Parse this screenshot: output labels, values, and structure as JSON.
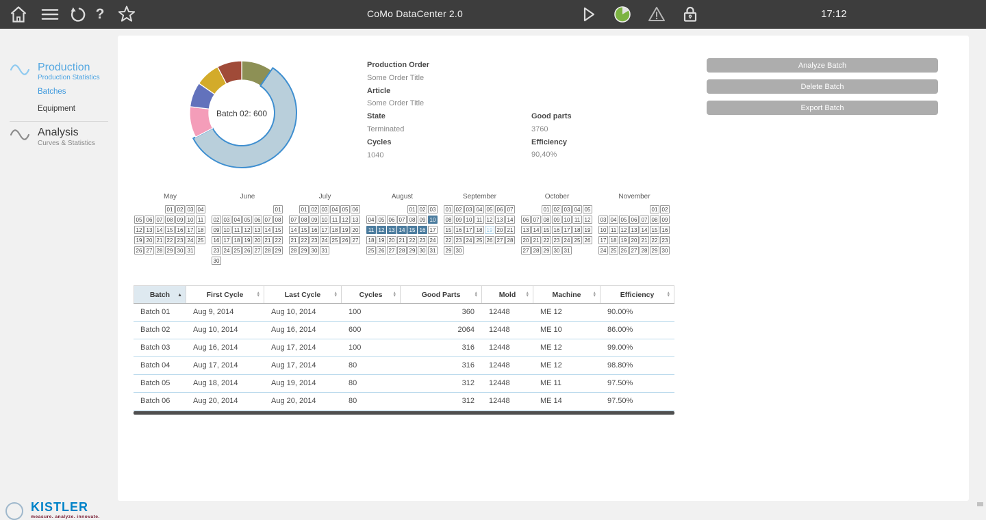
{
  "topbar": {
    "title": "CoMo DataCenter 2.0",
    "clock": "17:12",
    "left_icons": [
      "home-icon",
      "menu-icon",
      "undo-icon",
      "help-icon",
      "favorite-star-icon"
    ],
    "right_icons": [
      "play-icon",
      "status-pie-icon",
      "warning-icon",
      "lock-icon"
    ],
    "status_green": "#7cb342"
  },
  "sidebar": {
    "production_title": "Production",
    "production_subtitle": "Production Statistics",
    "items": [
      {
        "label": "Batches",
        "active": true
      },
      {
        "label": "Equipment",
        "active": false
      }
    ],
    "analysis_title": "Analysis",
    "analysis_subtitle": "Curves & Statistics",
    "accent_blue": "#3f9ade",
    "logo_text": "KISTLER",
    "logo_tagline": "measure. analyze. innovate."
  },
  "details": {
    "production_order_label": "Production Order",
    "production_order_value": "Some Order Title",
    "article_label": "Article",
    "article_value": "Some Order Title",
    "state_label": "State",
    "state_value": "Terminated",
    "cycles_label": "Cycles",
    "cycles_value": "1040",
    "good_parts_label": "Good parts",
    "good_parts_value": "3760",
    "efficiency_label": "Efficiency",
    "efficiency_value": "90,40%"
  },
  "actions": [
    "Analyze Batch",
    "Delete Batch",
    "Export Batch"
  ],
  "chart_data": {
    "type": "pie",
    "subtype": "donut",
    "center_label": "Batch 02: 600",
    "total_cycles": 1040,
    "highlight_stroke": "#3f8fd0",
    "series": [
      {
        "name": "Batch 01",
        "value": 100,
        "color": "#8d9055",
        "highlighted": false
      },
      {
        "name": "Batch 02",
        "value": 600,
        "color": "#b9cfdb",
        "highlighted": true
      },
      {
        "name": "Batch 03",
        "value": 100,
        "color": "#f49db9",
        "highlighted": false
      },
      {
        "name": "Batch 04",
        "value": 80,
        "color": "#6272bc",
        "highlighted": false
      },
      {
        "name": "Batch 05",
        "value": 80,
        "color": "#d3ab2a",
        "highlighted": false
      },
      {
        "name": "Batch 06",
        "value": 80,
        "color": "#a04b38",
        "highlighted": false
      }
    ]
  },
  "calendar": {
    "selected_color": "#4b7c9e",
    "months": [
      {
        "name": "May",
        "first_day_col": 3,
        "num_days": 31,
        "selected_days": [],
        "outlined_days": []
      },
      {
        "name": "June",
        "first_day_col": 6,
        "num_days": 30,
        "selected_days": [],
        "outlined_days": []
      },
      {
        "name": "July",
        "first_day_col": 1,
        "num_days": 31,
        "selected_days": [],
        "outlined_days": []
      },
      {
        "name": "August",
        "first_day_col": 4,
        "num_days": 31,
        "selected_days": [
          10,
          11,
          12,
          13,
          14,
          15,
          16
        ],
        "outlined_days": []
      },
      {
        "name": "September",
        "first_day_col": 0,
        "num_days": 30,
        "selected_days": [],
        "outlined_days": [
          19
        ]
      },
      {
        "name": "October",
        "first_day_col": 2,
        "num_days": 31,
        "selected_days": [],
        "outlined_days": []
      },
      {
        "name": "November",
        "first_day_col": 5,
        "num_days": 30,
        "selected_days": [],
        "outlined_days": []
      }
    ]
  },
  "table": {
    "columns": [
      {
        "label": "Batch",
        "sort": "asc"
      },
      {
        "label": "First Cycle",
        "sort": "none"
      },
      {
        "label": "Last Cycle",
        "sort": "none"
      },
      {
        "label": "Cycles",
        "sort": "none"
      },
      {
        "label": "Good Parts",
        "sort": "none"
      },
      {
        "label": "Mold",
        "sort": "none"
      },
      {
        "label": "Machine",
        "sort": "none"
      },
      {
        "label": "Efficiency",
        "sort": "none"
      }
    ],
    "rows": [
      [
        "Batch 01",
        "Aug 9, 2014",
        "Aug 10, 2014",
        "100",
        "360",
        "12448",
        "ME 12",
        "90.00%"
      ],
      [
        "Batch 02",
        "Aug 10, 2014",
        "Aug 16, 2014",
        "600",
        "2064",
        "12448",
        "ME 10",
        "86.00%"
      ],
      [
        "Batch 03",
        "Aug 16, 2014",
        "Aug 17, 2014",
        "100",
        "316",
        "12448",
        "ME 12",
        "99.00%"
      ],
      [
        "Batch 04",
        "Aug 17, 2014",
        "Aug 17, 2014",
        "80",
        "316",
        "12448",
        "ME 12",
        "98.80%"
      ],
      [
        "Batch 05",
        "Aug 18, 2014",
        "Aug 19, 2014",
        "80",
        "312",
        "12448",
        "ME 11",
        "97.50%"
      ],
      [
        "Batch 06",
        "Aug 20, 2014",
        "Aug 20, 2014",
        "80",
        "312",
        "12448",
        "ME 14",
        "97.50%"
      ]
    ]
  }
}
